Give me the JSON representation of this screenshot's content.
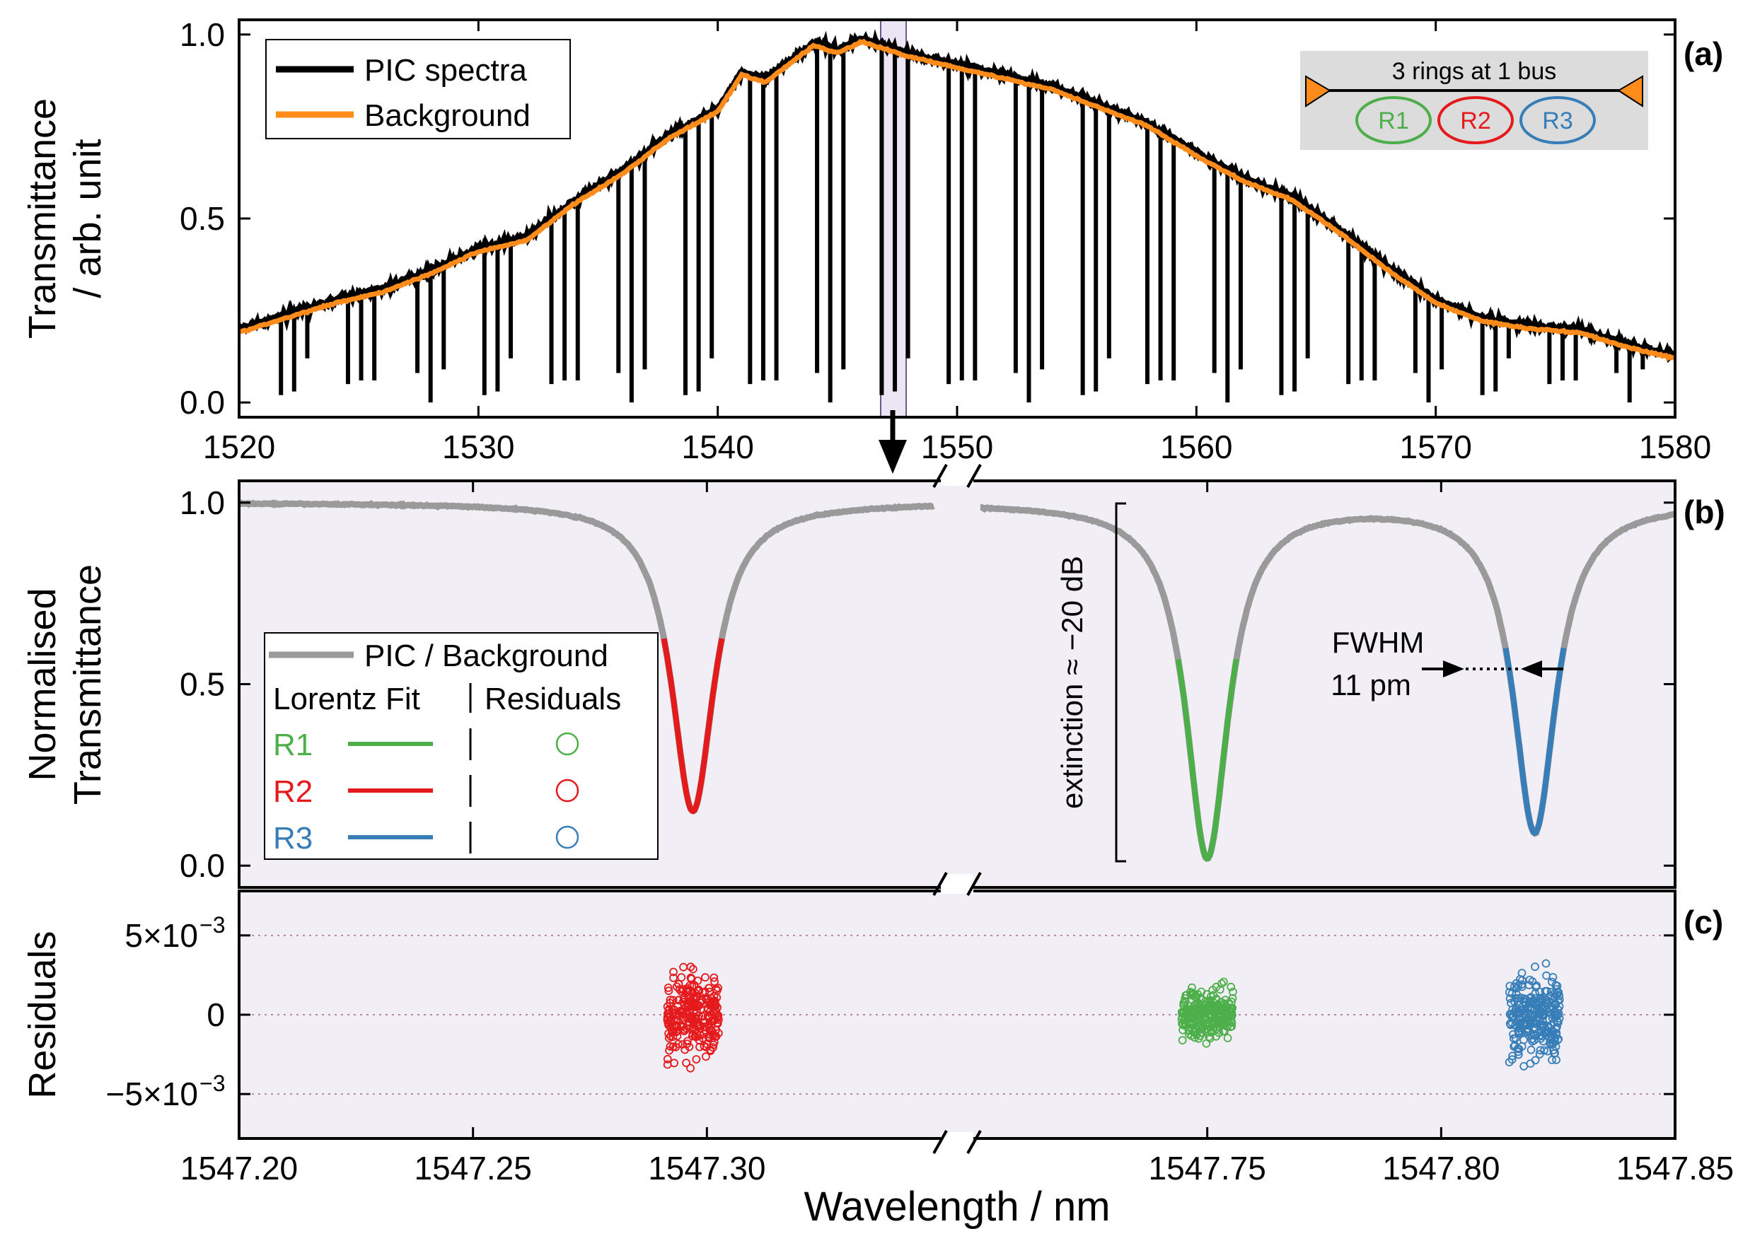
{
  "colors": {
    "pic": "#000000",
    "background": "#ff8c1a",
    "ratio": "#9a9a9a",
    "R1": "#4daf4a",
    "R2": "#e41a1c",
    "R3": "#377eb8",
    "shade": "#f2eef6"
  },
  "chart_data": [
    {
      "type": "line",
      "panel_label": "(a)",
      "ylabel_line1": "Transmittance",
      "ylabel_line2": "/ arb. unit",
      "xlim": [
        1520,
        1580
      ],
      "ylim": [
        -0.04,
        1.04
      ],
      "xticks": [
        1520,
        1530,
        1540,
        1550,
        1560,
        1570,
        1580
      ],
      "yticks": [
        "0.0",
        "0.5",
        "1.0"
      ],
      "legend": [
        "PIC spectra",
        "Background"
      ],
      "background_envelope": {
        "x": [
          1520,
          1522,
          1524,
          1526,
          1528,
          1530,
          1532,
          1534,
          1536,
          1538,
          1540,
          1541,
          1542,
          1543,
          1544,
          1545,
          1546,
          1547,
          1548,
          1550,
          1552,
          1554,
          1556,
          1558,
          1560,
          1562,
          1564,
          1566,
          1568,
          1570,
          1572,
          1574,
          1576,
          1578,
          1580
        ],
        "y": [
          0.19,
          0.23,
          0.27,
          0.3,
          0.35,
          0.41,
          0.44,
          0.54,
          0.62,
          0.72,
          0.79,
          0.89,
          0.87,
          0.92,
          0.97,
          0.95,
          0.98,
          0.96,
          0.94,
          0.91,
          0.88,
          0.85,
          0.8,
          0.75,
          0.67,
          0.6,
          0.55,
          0.46,
          0.36,
          0.27,
          0.22,
          0.2,
          0.19,
          0.15,
          0.12
        ]
      },
      "resonance_groups_nm": [
        1522.3,
        1525.1,
        1528.0,
        1530.8,
        1533.6,
        1536.4,
        1539.2,
        1541.9,
        1544.7,
        1547.4,
        1550.2,
        1553.0,
        1555.8,
        1558.5,
        1561.3,
        1564.1,
        1566.9,
        1569.7,
        1572.5,
        1575.3,
        1578.1
      ],
      "inset": {
        "title": "3 rings at 1 bus",
        "rings": [
          "R1",
          "R2",
          "R3"
        ]
      },
      "zoom_window_nm": [
        1547.2,
        1547.85
      ]
    },
    {
      "type": "line",
      "panel_label": "(b)",
      "ylabel_line1": "Normalised",
      "ylabel_line2": "Transmittance",
      "ylim": [
        -0.06,
        1.06
      ],
      "yticks": [
        "0.0",
        "0.5",
        "1.0"
      ],
      "legend_header": "PIC / Background",
      "legend_col1": "Lorentz Fit",
      "legend_col2": "Residuals",
      "legend_rows": [
        "R1",
        "R2",
        "R3"
      ],
      "resonances": [
        {
          "ring": "R2",
          "center_nm": 1547.297,
          "min": 0.15,
          "segment": "left"
        },
        {
          "ring": "R1",
          "center_nm": 1547.75,
          "min": 0.02,
          "segment": "right"
        },
        {
          "ring": "R3",
          "center_nm": 1547.82,
          "min": 0.09,
          "segment": "right"
        }
      ],
      "extinction_label": "extinction ≈ −20 dB",
      "fwhm_label_1": "FWHM",
      "fwhm_label_2": "11 pm"
    },
    {
      "type": "scatter",
      "panel_label": "(c)",
      "ylabel": "Residuals",
      "ylim": [
        -0.0078,
        0.0078
      ],
      "ytick_values": [
        0.005,
        0,
        -0.005
      ],
      "xlabel": "Wavelength / nm",
      "xticks_left": [
        "1547.20",
        "1547.25",
        "1547.30"
      ],
      "xticks_right": [
        "1547.75",
        "1547.80",
        "1547.85"
      ],
      "xlim_left": [
        1547.2,
        1547.35
      ],
      "xlim_right": [
        1547.7,
        1547.85
      ],
      "residual_spread": {
        "R2": 0.0045,
        "R1": 0.0025,
        "R3": 0.0045
      }
    }
  ]
}
